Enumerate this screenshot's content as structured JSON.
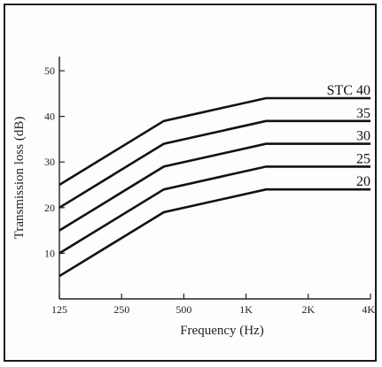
{
  "chart_data": {
    "type": "line",
    "title": "",
    "xlabel": "Frequency (Hz)",
    "ylabel": "Transmission loss (dB)",
    "x_scale": "log",
    "xlim": [
      125,
      4000
    ],
    "ylim": [
      0,
      50
    ],
    "x_ticks": [
      {
        "value": 125,
        "label": "125"
      },
      {
        "value": 250,
        "label": "250"
      },
      {
        "value": 500,
        "label": "500"
      },
      {
        "value": 1000,
        "label": "1K"
      },
      {
        "value": 2000,
        "label": "2K"
      },
      {
        "value": 4000,
        "label": "4K"
      }
    ],
    "y_ticks": [
      10,
      20,
      30,
      40,
      50
    ],
    "grid": false,
    "legend": "none",
    "colors": {
      "line": "#111111",
      "axis": "#222222"
    },
    "series": [
      {
        "name": "STC 40",
        "points": [
          [
            125,
            25
          ],
          [
            400,
            39
          ],
          [
            1250,
            44
          ],
          [
            4000,
            44
          ]
        ]
      },
      {
        "name": "35",
        "points": [
          [
            125,
            20
          ],
          [
            400,
            34
          ],
          [
            1250,
            39
          ],
          [
            4000,
            39
          ]
        ]
      },
      {
        "name": "30",
        "points": [
          [
            125,
            15
          ],
          [
            400,
            29
          ],
          [
            1250,
            34
          ],
          [
            4000,
            34
          ]
        ]
      },
      {
        "name": "25",
        "points": [
          [
            125,
            10
          ],
          [
            400,
            24
          ],
          [
            1250,
            29
          ],
          [
            4000,
            29
          ]
        ]
      },
      {
        "name": "20",
        "points": [
          [
            125,
            5
          ],
          [
            400,
            19
          ],
          [
            1250,
            24
          ],
          [
            4000,
            24
          ]
        ]
      }
    ]
  }
}
